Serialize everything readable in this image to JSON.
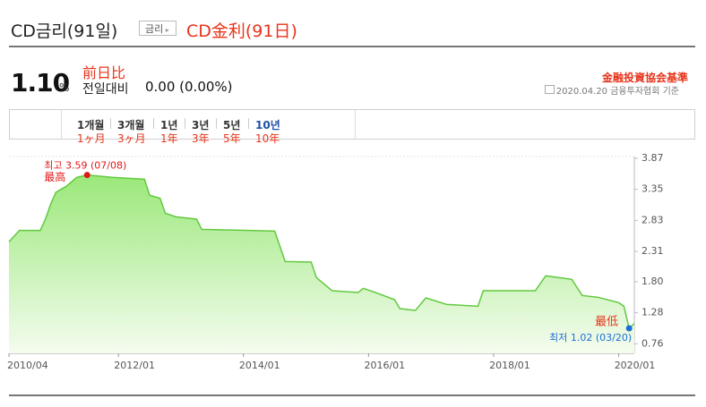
{
  "header": {
    "title": "CD금리(91일)",
    "button": "금리",
    "note": "CD金利(91日)"
  },
  "quote": {
    "value": "1.10",
    "unit": "%",
    "change_note": "前日比",
    "change_label": "전일대비",
    "change": "0.00 (0.00%)",
    "source_note": "金融投資協会基準",
    "source": "2020.04.20 금융투자협회 기준"
  },
  "tabs": [
    {
      "label": "1개월",
      "note": "1ヶ月"
    },
    {
      "label": "3개월",
      "note": "3ヶ月"
    },
    {
      "label": "1년",
      "note": "1年"
    },
    {
      "label": "3년",
      "note": "3年"
    },
    {
      "label": "5년",
      "note": "5年"
    },
    {
      "label": "10년",
      "note": "10年",
      "active": true
    }
  ],
  "chart_data": {
    "type": "area",
    "color": "#62c93f",
    "x": [
      "2010/04",
      "2010/06",
      "2010/10",
      "2010/11",
      "2010/12",
      "2011/01",
      "2011/03",
      "2011/05",
      "2011/07",
      "2011/12",
      "2012/06",
      "2012/07",
      "2012/09",
      "2012/10",
      "2012/12",
      "2013/04",
      "2013/05",
      "2014/07",
      "2014/09",
      "2015/02",
      "2015/03",
      "2015/06",
      "2015/11",
      "2015/12",
      "2016/02",
      "2016/06",
      "2016/07",
      "2016/10",
      "2016/12",
      "2017/04",
      "2017/10",
      "2017/11",
      "2018/09",
      "2018/11",
      "2019/04",
      "2019/06",
      "2019/09",
      "2020/01",
      "2020/02",
      "2020/03",
      "2020/04"
    ],
    "values": [
      2.47,
      2.66,
      2.66,
      2.85,
      3.1,
      3.3,
      3.4,
      3.55,
      3.59,
      3.55,
      3.52,
      3.25,
      3.2,
      2.95,
      2.89,
      2.85,
      2.68,
      2.65,
      2.14,
      2.13,
      1.87,
      1.65,
      1.62,
      1.69,
      1.63,
      1.5,
      1.35,
      1.32,
      1.53,
      1.42,
      1.39,
      1.65,
      1.65,
      1.9,
      1.84,
      1.57,
      1.54,
      1.45,
      1.39,
      1.02,
      1.1
    ],
    "xlim": [
      "2010/04",
      "2020/04"
    ],
    "xticks": [
      "2010/04",
      "2012/01",
      "2014/01",
      "2016/01",
      "2018/01",
      "2020/01"
    ],
    "ylim": [
      0.6,
      3.9
    ],
    "yticks": [
      3.87,
      3.35,
      2.83,
      2.31,
      {
        "value": 1.8,
        "label": "1.80"
      },
      1.28,
      0.76
    ],
    "max_label": "최고 3.59 (07/08)",
    "max_note": "最高",
    "max_color": "#e01818",
    "min_label": "최저 1.02 (03/20)",
    "min_note": "最低",
    "min_color": "#1d6fd6"
  }
}
